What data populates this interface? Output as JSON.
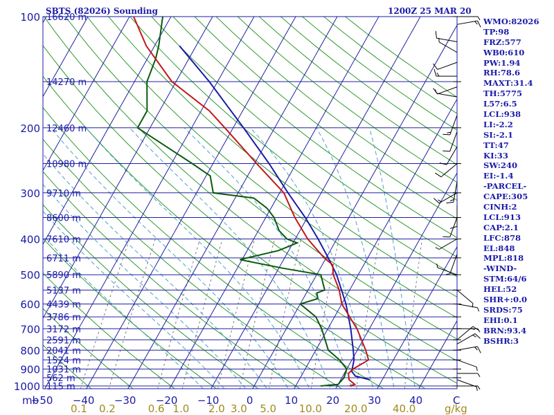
{
  "chart_data": {
    "type": "skew-t",
    "title_left": "SBTS (82026) Sounding",
    "title_right": "1200Z 25 MAR 20",
    "pressure_axis": {
      "unit_label": "mb",
      "ticks": [
        100,
        200,
        300,
        400,
        500,
        600,
        700,
        800,
        900,
        1000
      ],
      "range": [
        1050,
        100
      ],
      "log_scale": true
    },
    "temperature_axis": {
      "ticks": [
        -50,
        -40,
        -30,
        -20,
        -10,
        0,
        10,
        20,
        30,
        40
      ],
      "tick_labels": [
        "−50",
        "−40",
        "−30",
        "−20",
        "−10",
        "0",
        "10",
        "20",
        "30",
        "40"
      ],
      "end_label": "C"
    },
    "mixing_ratio_labels": [
      "0.1",
      "0.2",
      "0.6",
      "1.0",
      "2.0",
      "3.0",
      "5.0",
      "10.0",
      "20.0",
      "40.0"
    ],
    "mixing_ratio_unit": "g/kg",
    "height_labels": [
      {
        "p": 100,
        "text": "16620 m"
      },
      {
        "p": 150,
        "text": "14270 m"
      },
      {
        "p": 200,
        "text": "12460 m"
      },
      {
        "p": 250,
        "text": "10980 m"
      },
      {
        "p": 300,
        "text": "9710 m"
      },
      {
        "p": 350,
        "text": "8600 m"
      },
      {
        "p": 400,
        "text": "7610 m"
      },
      {
        "p": 450,
        "text": "6711 m"
      },
      {
        "p": 500,
        "text": "5890 m"
      },
      {
        "p": 550,
        "text": "5137 m"
      },
      {
        "p": 600,
        "text": "4439 m"
      },
      {
        "p": 650,
        "text": "3786 m"
      },
      {
        "p": 700,
        "text": "3172 m"
      },
      {
        "p": 750,
        "text": "2591 m"
      },
      {
        "p": 800,
        "text": "2041 m"
      },
      {
        "p": 850,
        "text": "1524 m"
      },
      {
        "p": 900,
        "text": "1031 m"
      },
      {
        "p": 950,
        "text": "562 m"
      },
      {
        "p": 1000,
        "text": "115 m"
      }
    ],
    "temperature_profile": [
      {
        "p": 1000,
        "t": 23.0
      },
      {
        "p": 990,
        "t": 24.0
      },
      {
        "p": 962,
        "t": 22.0
      },
      {
        "p": 925,
        "t": 21.0
      },
      {
        "p": 900,
        "t": 21.5
      },
      {
        "p": 850,
        "t": 24.0
      },
      {
        "p": 800,
        "t": 22.0
      },
      {
        "p": 700,
        "t": 17.0
      },
      {
        "p": 600,
        "t": 10.0
      },
      {
        "p": 550,
        "t": 7.5
      },
      {
        "p": 500,
        "t": 4.0
      },
      {
        "p": 470,
        "t": 2.5
      },
      {
        "p": 450,
        "t": -0.5
      },
      {
        "p": 400,
        "t": -7.0
      },
      {
        "p": 350,
        "t": -13.0
      },
      {
        "p": 300,
        "t": -19.0
      },
      {
        "p": 250,
        "t": -29.5
      },
      {
        "p": 200,
        "t": -42.0
      },
      {
        "p": 180,
        "t": -48.0
      },
      {
        "p": 150,
        "t": -61.0
      },
      {
        "p": 120,
        "t": -72.0
      },
      {
        "p": 100,
        "t": -79.0
      }
    ],
    "dewpoint_profile": [
      {
        "p": 1000,
        "t": 16.0
      },
      {
        "p": 990,
        "t": 20.0
      },
      {
        "p": 950,
        "t": 20.5
      },
      {
        "p": 900,
        "t": 20.0
      },
      {
        "p": 850,
        "t": 17.0
      },
      {
        "p": 800,
        "t": 13.0
      },
      {
        "p": 700,
        "t": 8.5
      },
      {
        "p": 650,
        "t": 5.5
      },
      {
        "p": 600,
        "t": 0.0
      },
      {
        "p": 580,
        "t": 3.5
      },
      {
        "p": 560,
        "t": 2.5
      },
      {
        "p": 550,
        "t": 4.0
      },
      {
        "p": 500,
        "t": 1.0
      },
      {
        "p": 480,
        "t": -9.0
      },
      {
        "p": 455,
        "t": -20.5
      },
      {
        "p": 430,
        "t": -12.5
      },
      {
        "p": 410,
        "t": -9.0
      },
      {
        "p": 400,
        "t": -12.0
      },
      {
        "p": 380,
        "t": -15.0
      },
      {
        "p": 350,
        "t": -18.0
      },
      {
        "p": 330,
        "t": -21.0
      },
      {
        "p": 310,
        "t": -25.5
      },
      {
        "p": 300,
        "t": -36.0
      },
      {
        "p": 270,
        "t": -39.0
      },
      {
        "p": 250,
        "t": -45.0
      },
      {
        "p": 200,
        "t": -63.0
      },
      {
        "p": 180,
        "t": -63.0
      },
      {
        "p": 150,
        "t": -67.0
      },
      {
        "p": 130,
        "t": -68.0
      },
      {
        "p": 120,
        "t": -69.0
      },
      {
        "p": 100,
        "t": -72.0
      }
    ],
    "parcel_profile": [
      {
        "p": 962,
        "t": 27.0
      },
      {
        "p": 940,
        "t": 23.0
      },
      {
        "p": 913,
        "t": 21.5
      },
      {
        "p": 850,
        "t": 20.5
      },
      {
        "p": 800,
        "t": 19.0
      },
      {
        "p": 700,
        "t": 15.5
      },
      {
        "p": 600,
        "t": 11.0
      },
      {
        "p": 500,
        "t": 4.8
      },
      {
        "p": 450,
        "t": 0.5
      },
      {
        "p": 400,
        "t": -4.5
      },
      {
        "p": 350,
        "t": -10.5
      },
      {
        "p": 300,
        "t": -18.0
      },
      {
        "p": 250,
        "t": -26.5
      },
      {
        "p": 200,
        "t": -37.5
      },
      {
        "p": 150,
        "t": -52.0
      },
      {
        "p": 120,
        "t": -64.0
      }
    ],
    "wind_barbs": [
      {
        "p": 100,
        "dir": 90,
        "spd": 5
      },
      {
        "p": 105,
        "dir": 80,
        "spd": 15
      },
      {
        "p": 117,
        "dir": 280,
        "spd": 10
      },
      {
        "p": 125,
        "dir": 300,
        "spd": 5
      },
      {
        "p": 133,
        "dir": 250,
        "spd": 10
      },
      {
        "p": 145,
        "dir": 270,
        "spd": 15
      },
      {
        "p": 155,
        "dir": 250,
        "spd": 10
      },
      {
        "p": 165,
        "dir": 280,
        "spd": 5
      },
      {
        "p": 185,
        "dir": 200,
        "spd": 15
      },
      {
        "p": 205,
        "dir": 200,
        "spd": 10
      },
      {
        "p": 225,
        "dir": 210,
        "spd": 10
      },
      {
        "p": 250,
        "dir": 230,
        "spd": 10
      },
      {
        "p": 280,
        "dir": 190,
        "spd": 15
      },
      {
        "p": 300,
        "dir": 240,
        "spd": 15
      },
      {
        "p": 325,
        "dir": 180,
        "spd": 10
      },
      {
        "p": 350,
        "dir": 200,
        "spd": 10
      },
      {
        "p": 400,
        "dir": 240,
        "spd": 5
      },
      {
        "p": 440,
        "dir": 200,
        "spd": 5
      },
      {
        "p": 500,
        "dir": 290,
        "spd": 5
      },
      {
        "p": 550,
        "dir": 130,
        "spd": 5
      },
      {
        "p": 600,
        "dir": 100,
        "spd": 5
      },
      {
        "p": 700,
        "dir": 90,
        "spd": 5
      },
      {
        "p": 750,
        "dir": 50,
        "spd": 15
      },
      {
        "p": 770,
        "dir": 60,
        "spd": 15
      },
      {
        "p": 800,
        "dir": 80,
        "spd": 15
      },
      {
        "p": 850,
        "dir": 110,
        "spd": 5
      },
      {
        "p": 925,
        "dir": 90,
        "spd": 5
      },
      {
        "p": 962,
        "dir": 110,
        "spd": 5
      },
      {
        "p": 1000,
        "dir": 90,
        "spd": 5
      }
    ],
    "indices": [
      "WMO:82026",
      "TP:98",
      "FRZ:577",
      "WB0:610",
      "PW:1.94",
      "RH:78.6",
      "MAXT:31.4",
      "TH:5775",
      "L57:6.5",
      "LCL:938",
      "LI:-2.2",
      "SI:-2.1",
      "TT:47",
      "KI:33",
      "SW:240",
      "EI:-1.4",
      "-PARCEL-",
      "CAPE:305",
      "CINH:2",
      "LCL:913",
      "CAP:2.1",
      "LFC:878",
      "EL:848",
      "MPL:818",
      "-WIND-",
      "STM:64/6",
      "HEL:52",
      "SHR+:0.0",
      "SRDS:75",
      "EHI:0.1",
      "BRN:93.4",
      "BSHR:3"
    ],
    "colors": {
      "axes": "#1a1aa8",
      "isobar": "#2020a0",
      "isotherm": "#2020a0",
      "dry_adiabat": "#2e9a2e",
      "moist_adiabat": "#4aa0c8",
      "mixing_ratio": "#7a7a7a",
      "temperature": "#c01818",
      "dewpoint": "#0a5a0a",
      "parcel": "#1a1aa8",
      "mixing_label": "#a08a1e"
    },
    "grid": true
  }
}
